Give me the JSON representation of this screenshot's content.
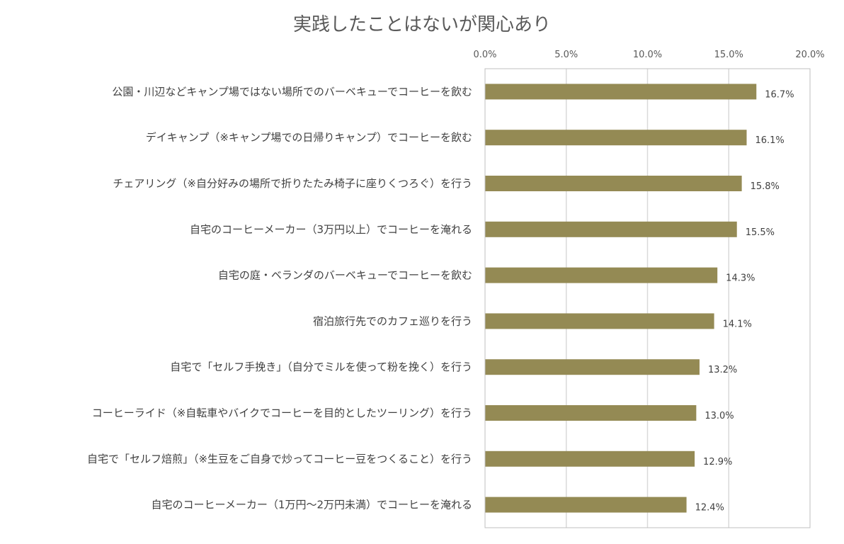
{
  "chart_data": {
    "type": "bar",
    "orientation": "horizontal",
    "title": "実践したことはないが関心あり",
    "categories": [
      "公園・川辺などキャンプ場ではない場所でのバーベキューでコーヒーを飲む",
      "デイキャンプ（※キャンプ場での日帰りキャンプ）でコーヒーを飲む",
      "チェアリング（※自分好みの場所で折りたたみ椅子に座りくつろぐ）を行う",
      "自宅のコーヒーメーカー（3万円以上）でコーヒーを淹れる",
      "自宅の庭・ベランダのバーベキューでコーヒーを飲む",
      "宿泊旅行先でのカフェ巡りを行う",
      "自宅で「セルフ手挽き」（自分でミルを使って粉を挽く）を行う",
      "コーヒーライド（※自転車やバイクでコーヒーを目的としたツーリング）を行う",
      "自宅で「セルフ焙煎」（※生豆をご自身で炒ってコーヒー豆をつくること）を行う",
      "自宅のコーヒーメーカー（1万円～2万円未満）でコーヒーを淹れる"
    ],
    "values": [
      16.7,
      16.1,
      15.8,
      15.5,
      14.3,
      14.1,
      13.2,
      13.0,
      12.9,
      12.4
    ],
    "value_labels": [
      "16.7%",
      "16.1%",
      "15.8%",
      "15.5%",
      "14.3%",
      "14.1%",
      "13.2%",
      "13.0%",
      "12.9%",
      "12.4%"
    ],
    "x_ticks": [
      0,
      5,
      10,
      15,
      20
    ],
    "x_tick_labels": [
      "0.0%",
      "5.0%",
      "10.0%",
      "15.0%",
      "20.0%"
    ],
    "xlim": [
      0,
      20
    ],
    "xaxis_position": "top",
    "grid": true,
    "bar_color": "#948A54",
    "grid_color": "#d9d9d9"
  }
}
